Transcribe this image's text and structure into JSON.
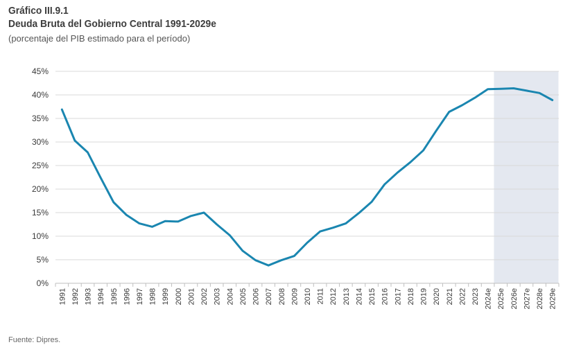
{
  "header": {
    "number": "Gráfico III.9.1",
    "title": "Deuda Bruta del Gobierno Central 1991-2029e",
    "subtitle": "(porcentaje del PIB estimado para el período)"
  },
  "footer": {
    "source": "Fuente: Dipres."
  },
  "chart_data": {
    "type": "line",
    "title": "Deuda Bruta del Gobierno Central 1991-2029e",
    "subtitle": "(porcentaje del PIB estimado para el período)",
    "xlabel": "",
    "ylabel": "",
    "ylim": [
      0,
      45
    ],
    "yticks": [
      "0%",
      "5%",
      "10%",
      "15%",
      "20%",
      "25%",
      "30%",
      "35%",
      "40%",
      "45%"
    ],
    "grid": true,
    "line_color": "#1a86b0",
    "shade_color": "#e4e8f0",
    "shaded_region": [
      "2025e",
      "2029e"
    ],
    "categories": [
      "1991",
      "1992",
      "1993",
      "1994",
      "1995",
      "1996",
      "1997",
      "1998",
      "1999",
      "2000",
      "2001",
      "2002",
      "2003",
      "2004",
      "2005",
      "2006",
      "2007",
      "2008",
      "2009",
      "2010",
      "2011",
      "2012",
      "2013",
      "2014",
      "2015",
      "2016",
      "2017",
      "2018",
      "2019",
      "2020",
      "2021",
      "2022",
      "2023",
      "2024e",
      "2025e",
      "2026e",
      "2027e",
      "2028e",
      "2029e"
    ],
    "series": [
      {
        "values": [
          36.9,
          30.3,
          27.8,
          22.4,
          17.2,
          14.5,
          12.7,
          12.0,
          13.2,
          13.1,
          14.3,
          15.0,
          12.5,
          10.2,
          6.9,
          4.9,
          3.8,
          4.9,
          5.8,
          8.6,
          11.0,
          11.8,
          12.7,
          14.9,
          17.3,
          21.0,
          23.5,
          25.7,
          28.2,
          32.4,
          36.4,
          37.8,
          39.4,
          41.2,
          41.3,
          41.4,
          40.9,
          40.4,
          38.9
        ]
      }
    ]
  }
}
